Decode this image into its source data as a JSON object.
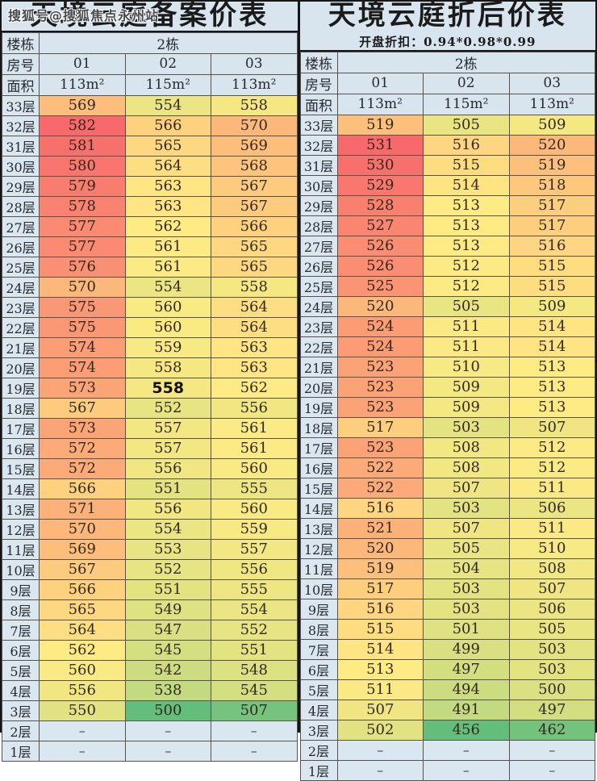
{
  "watermark": "搜狐号@搜狐焦点永州站",
  "dash": "–",
  "colors": {
    "heat_green": "#63BE7B",
    "heat_yellow": "#FFEB84",
    "heat_red": "#F8696B",
    "panel_bg": "#d8e4ee",
    "label_bg": "#dbe7f0",
    "border_inner": "#57524b",
    "border_outer": "#161616"
  },
  "floors": [
    "33层",
    "32层",
    "31层",
    "30层",
    "29层",
    "28层",
    "27层",
    "26层",
    "25层",
    "24层",
    "23层",
    "22层",
    "21层",
    "20层",
    "19层",
    "18层",
    "17层",
    "16层",
    "15层",
    "14层",
    "13层",
    "12层",
    "11层",
    "10层",
    "9层",
    "8层",
    "7层",
    "6层",
    "5层",
    "4层",
    "3层",
    "2层",
    "1层"
  ],
  "chart_data": [
    {
      "type": "heatmap",
      "title": "天境云庭备案价表",
      "subtitle": "",
      "building_label": "楼栋",
      "building": "2栋",
      "room_label": "房号",
      "rooms": [
        "01",
        "02",
        "03"
      ],
      "area_label": "面积",
      "areas": [
        "113m²",
        "115m²",
        "113m²"
      ],
      "legend_note": "heat scale green(min)→yellow(median)→red(max), per table",
      "bold_cells": [
        [
          14,
          1
        ]
      ],
      "rows": [
        [
          569,
          554,
          558
        ],
        [
          582,
          566,
          570
        ],
        [
          581,
          565,
          569
        ],
        [
          580,
          564,
          568
        ],
        [
          579,
          563,
          567
        ],
        [
          578,
          563,
          567
        ],
        [
          577,
          562,
          566
        ],
        [
          577,
          561,
          565
        ],
        [
          576,
          561,
          565
        ],
        [
          570,
          554,
          558
        ],
        [
          575,
          560,
          564
        ],
        [
          575,
          560,
          564
        ],
        [
          574,
          559,
          563
        ],
        [
          574,
          558,
          563
        ],
        [
          573,
          558,
          562
        ],
        [
          567,
          552,
          556
        ],
        [
          573,
          557,
          561
        ],
        [
          572,
          557,
          561
        ],
        [
          572,
          556,
          560
        ],
        [
          566,
          551,
          555
        ],
        [
          571,
          556,
          560
        ],
        [
          570,
          554,
          559
        ],
        [
          569,
          553,
          557
        ],
        [
          567,
          552,
          556
        ],
        [
          566,
          551,
          555
        ],
        [
          565,
          549,
          554
        ],
        [
          564,
          547,
          552
        ],
        [
          562,
          545,
          551
        ],
        [
          560,
          542,
          548
        ],
        [
          556,
          538,
          545
        ],
        [
          550,
          500,
          507
        ],
        [
          "–",
          "–",
          "–"
        ],
        [
          "–",
          "–",
          "–"
        ]
      ]
    },
    {
      "type": "heatmap",
      "title": "天境云庭折后价表",
      "subtitle": "开盘折扣：0.94*0.98*0.99",
      "building_label": "楼栋",
      "building": "2栋",
      "room_label": "房号",
      "rooms": [
        "01",
        "02",
        "03"
      ],
      "area_label": "面积",
      "areas": [
        "113m²",
        "115m²",
        "113m²"
      ],
      "legend_note": "heat scale green(min)→yellow(median)→red(max), per table",
      "bold_cells": [],
      "rows": [
        [
          519,
          505,
          509
        ],
        [
          531,
          516,
          520
        ],
        [
          530,
          515,
          519
        ],
        [
          529,
          514,
          518
        ],
        [
          528,
          513,
          517
        ],
        [
          527,
          513,
          517
        ],
        [
          526,
          513,
          516
        ],
        [
          526,
          512,
          515
        ],
        [
          525,
          512,
          515
        ],
        [
          520,
          505,
          509
        ],
        [
          524,
          511,
          514
        ],
        [
          524,
          511,
          514
        ],
        [
          523,
          510,
          513
        ],
        [
          523,
          509,
          513
        ],
        [
          523,
          509,
          513
        ],
        [
          517,
          503,
          507
        ],
        [
          523,
          508,
          512
        ],
        [
          522,
          508,
          512
        ],
        [
          522,
          507,
          511
        ],
        [
          516,
          503,
          506
        ],
        [
          521,
          507,
          511
        ],
        [
          520,
          505,
          510
        ],
        [
          519,
          504,
          508
        ],
        [
          517,
          503,
          507
        ],
        [
          516,
          503,
          506
        ],
        [
          515,
          501,
          505
        ],
        [
          514,
          499,
          503
        ],
        [
          513,
          497,
          503
        ],
        [
          511,
          494,
          500
        ],
        [
          507,
          491,
          497
        ],
        [
          502,
          456,
          462
        ],
        [
          "–",
          "–",
          "–"
        ],
        [
          "–",
          "–",
          "–"
        ]
      ]
    }
  ]
}
